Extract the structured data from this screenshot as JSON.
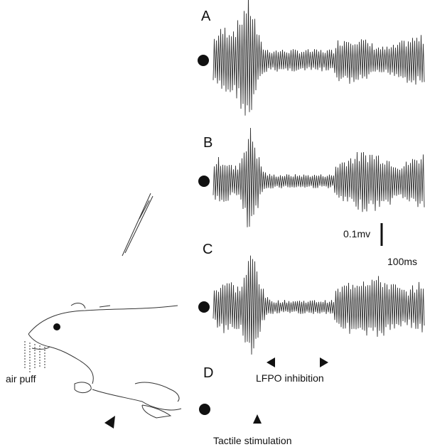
{
  "panels": {
    "a": "A",
    "b": "B",
    "c": "C",
    "d": "D"
  },
  "scale_bar": {
    "voltage": "0.1mv",
    "time": "100ms"
  },
  "annotations": {
    "lfpo": "LFPO inhibition",
    "tactile": "Tactile stimulation",
    "air_puff": "air puff"
  }
}
